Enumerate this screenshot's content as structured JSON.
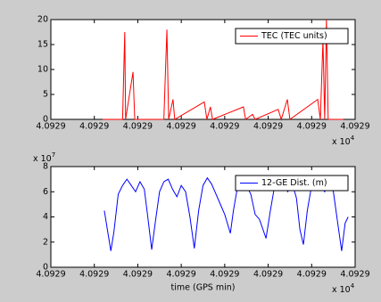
{
  "chart_data": [
    {
      "type": "line",
      "x": [
        4.0929119,
        4.0929165,
        4.092917,
        4.0929172,
        4.0929189,
        4.0929193,
        4.092926,
        4.0929263,
        4.0929267,
        4.0929271,
        4.0929281,
        4.0929285,
        4.0929353,
        4.0929359,
        4.0929367,
        4.0929372,
        4.0929443,
        4.0929448,
        4.0929464,
        4.092947,
        4.0929523,
        4.092953,
        4.0929544,
        4.092955,
        4.0929614,
        4.092962,
        4.0929626,
        4.092963,
        4.0929634,
        4.0929638,
        4.0929673
      ],
      "series": [
        {
          "name": "TEC (TEC units)",
          "color": "#ff0000",
          "values": [
            0,
            0,
            17.5,
            0,
            9.5,
            0,
            0,
            8,
            18,
            0,
            4,
            0,
            3.5,
            0,
            2.5,
            0,
            2.5,
            0,
            1,
            0,
            2,
            0,
            4,
            0,
            4,
            0,
            16,
            0,
            20,
            0,
            0
          ]
        }
      ],
      "xlim": [
        4.0929,
        4.09297
      ],
      "xticks": [
        {
          "value": 4.0929,
          "label": "4.0929"
        },
        {
          "value": 4.09291,
          "label": "4.0929"
        },
        {
          "value": 4.09292,
          "label": "4.0929"
        },
        {
          "value": 4.09293,
          "label": "4.0929"
        },
        {
          "value": 4.09294,
          "label": "4.0929"
        },
        {
          "value": 4.09295,
          "label": "4.0929"
        },
        {
          "value": 4.09296,
          "label": "4.0929"
        },
        {
          "value": 4.09297,
          "label": "4.0929"
        }
      ],
      "x_multiplier": {
        "base": "x 10",
        "exponent": "4"
      },
      "ylim": [
        0,
        20
      ],
      "yticks": [
        0,
        5,
        10,
        15,
        20
      ],
      "legend": "upper right",
      "grid": false
    },
    {
      "type": "line",
      "x": [
        4.0929123,
        4.092913,
        4.0929138,
        4.0929145,
        4.0929155,
        4.0929165,
        4.0929175,
        4.0929185,
        4.0929195,
        4.0929205,
        4.0929215,
        4.0929223,
        4.0929232,
        4.092924,
        4.092925,
        4.092926,
        4.092927,
        4.092928,
        4.092929,
        4.09293,
        4.092931,
        4.092932,
        4.092933,
        4.092934,
        4.092935,
        4.092936,
        4.092937,
        4.092938,
        4.092939,
        4.09294,
        4.0929413,
        4.092942,
        4.092943,
        4.092944,
        4.092945,
        4.092946,
        4.092947,
        4.092948,
        4.0929495,
        4.0929505,
        4.0929515,
        4.0929525,
        4.0929535,
        4.0929545,
        4.0929555,
        4.0929565,
        4.0929573,
        4.0929581,
        4.092959,
        4.09296,
        4.092961,
        4.092962,
        4.092963,
        4.092964,
        4.092965,
        4.092966,
        4.0929669,
        4.0929677,
        4.0929684
      ],
      "series": [
        {
          "name": "12-GE Dist. (m)",
          "color": "#0000ff",
          "values": [
            4.5,
            3.0,
            1.3,
            2.8,
            5.8,
            6.5,
            7.0,
            6.5,
            6.0,
            6.8,
            6.2,
            4.0,
            1.4,
            3.5,
            6.0,
            6.8,
            7.0,
            6.2,
            5.6,
            6.5,
            6.0,
            4.0,
            1.5,
            4.5,
            6.5,
            7.1,
            6.6,
            5.8,
            5.0,
            4.2,
            2.7,
            4.5,
            6.5,
            7.0,
            6.5,
            5.8,
            4.2,
            3.8,
            2.3,
            4.5,
            6.5,
            7.0,
            6.6,
            6.0,
            6.7,
            5.5,
            3.0,
            1.8,
            4.5,
            6.5,
            7.0,
            6.6,
            6.0,
            6.8,
            6.0,
            3.5,
            1.3,
            3.5,
            4.0
          ]
        }
      ],
      "xlim": [
        4.0929,
        4.09297
      ],
      "xticks": [
        {
          "value": 4.0929,
          "label": "4.0929"
        },
        {
          "value": 4.09291,
          "label": "4.0929"
        },
        {
          "value": 4.09292,
          "label": "4.0929"
        },
        {
          "value": 4.09293,
          "label": "4.0929"
        },
        {
          "value": 4.09294,
          "label": "4.0929"
        },
        {
          "value": 4.09295,
          "label": "4.0929"
        },
        {
          "value": 4.09296,
          "label": "4.0929"
        },
        {
          "value": 4.09297,
          "label": "4.0929"
        }
      ],
      "x_multiplier": {
        "base": "x 10",
        "exponent": "4"
      },
      "ylim": [
        0,
        8
      ],
      "yticks": [
        0,
        2,
        4,
        6,
        8
      ],
      "y_multiplier": {
        "base": "x 10",
        "exponent": "7"
      },
      "xlabel": "time (GPS min)",
      "legend": "upper right",
      "grid": false
    }
  ]
}
